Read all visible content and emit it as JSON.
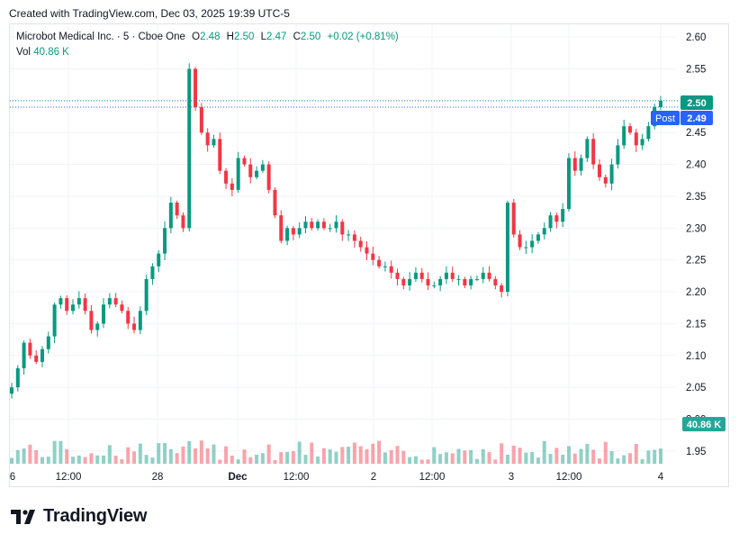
{
  "header": {
    "created_text": "Created with TradingView.com, Dec 03, 2025 19:39 UTC-5"
  },
  "legend": {
    "symbol": "Microbot Medical Inc. · 5 · Cboe One",
    "o_label": "O",
    "o_value": "2.48",
    "h_label": "H",
    "h_value": "2.50",
    "l_label": "L",
    "l_value": "2.47",
    "c_label": "C",
    "c_value": "2.50",
    "change": "+0.02 (+0.81%)",
    "vol_label": "Vol",
    "vol_value": "40.86 K"
  },
  "badges": {
    "last_price": "2.50",
    "post_label": "Post",
    "post_price": "2.49",
    "volume": "40.86 K"
  },
  "footer": {
    "brand": "TradingView"
  },
  "colors": {
    "up": "#089981",
    "down": "#f23645",
    "post": "#2962ff",
    "grid": "#f0f3fa",
    "text": "#131722"
  },
  "chart_data": {
    "type": "candlestick",
    "title": "Microbot Medical Inc. · 5 · Cboe One",
    "y_ticks": [
      "2.60",
      "2.55",
      "2.50",
      "2.45",
      "2.40",
      "2.35",
      "2.30",
      "2.25",
      "2.20",
      "2.15",
      "2.10",
      "2.05",
      "2.00",
      "1.95"
    ],
    "ylim": [
      1.93,
      2.62
    ],
    "x_ticks": [
      "6",
      "12:00",
      "28",
      "Dec",
      "12:00",
      "2",
      "12:00",
      "3",
      "12:00",
      "4"
    ],
    "grid": true,
    "legend_position": "top-left",
    "last_price": 2.5,
    "post_price": 2.49,
    "close_series": [
      2.05,
      2.08,
      2.12,
      2.1,
      2.09,
      2.11,
      2.13,
      2.18,
      2.19,
      2.17,
      2.18,
      2.19,
      2.17,
      2.14,
      2.15,
      2.18,
      2.19,
      2.18,
      2.17,
      2.15,
      2.14,
      2.17,
      2.22,
      2.24,
      2.26,
      2.3,
      2.34,
      2.32,
      2.3,
      2.55,
      2.49,
      2.45,
      2.43,
      2.44,
      2.39,
      2.37,
      2.36,
      2.41,
      2.4,
      2.38,
      2.39,
      2.4,
      2.36,
      2.32,
      2.28,
      2.3,
      2.29,
      2.3,
      2.31,
      2.3,
      2.31,
      2.3,
      2.3,
      2.31,
      2.29,
      2.29,
      2.28,
      2.27,
      2.26,
      2.25,
      2.24,
      2.24,
      2.23,
      2.22,
      2.21,
      2.22,
      2.23,
      2.22,
      2.21,
      2.21,
      2.22,
      2.23,
      2.22,
      2.22,
      2.21,
      2.22,
      2.22,
      2.23,
      2.22,
      2.21,
      2.2,
      2.34,
      2.29,
      2.27,
      2.27,
      2.28,
      2.29,
      2.3,
      2.32,
      2.31,
      2.33,
      2.41,
      2.39,
      2.41,
      2.44,
      2.4,
      2.38,
      2.37,
      2.4,
      2.43,
      2.46,
      2.45,
      2.43,
      2.44,
      2.46,
      2.49,
      2.5
    ]
  }
}
